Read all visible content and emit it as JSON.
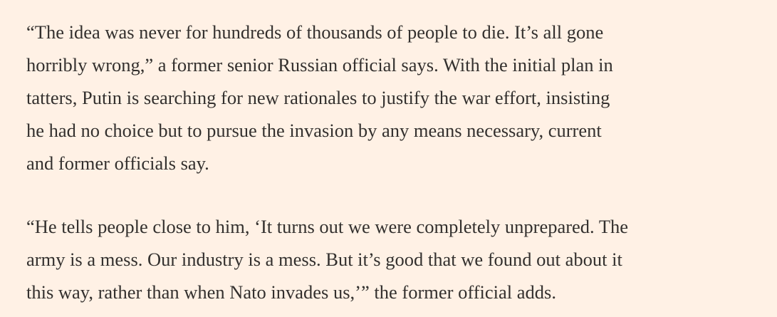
{
  "article": {
    "paragraphs": [
      {
        "lines": [
          "“The idea was never for hundreds of thousands of people to die. It’s all gone",
          "horribly wrong,” a former senior Russian official says. With the initial plan in",
          "tatters, Putin is searching for new rationales to justify the war effort, insisting",
          "he had no choice but to pursue the invasion by any means necessary, current",
          "and former officials say."
        ]
      },
      {
        "lines": [
          "“He tells people close to him, ‘It turns out we were completely unprepared. The",
          "army is a mess. Our industry is a mess. But it’s good that we found out about it",
          "this way, rather than when Nato invades us,’” the former official adds."
        ]
      }
    ]
  }
}
